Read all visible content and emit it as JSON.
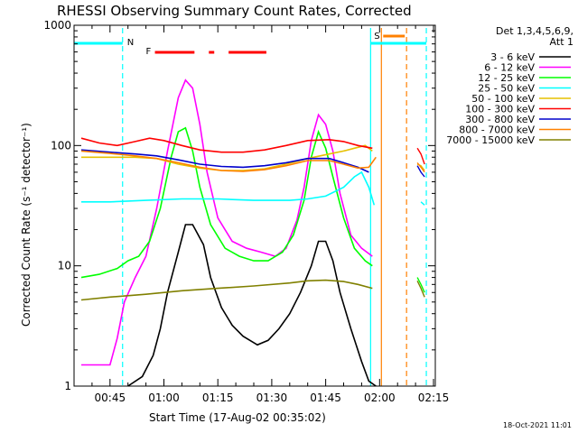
{
  "chart_data": {
    "type": "line",
    "title": "RHESSI Observing Summary Count Rates, Corrected",
    "xlabel": "Start Time (17-Aug-02 00:35:02)",
    "ylabel": "Corrected Count Rate (s⁻¹ detector⁻¹)",
    "y_scale": "log",
    "ylim": [
      1,
      1000
    ],
    "xlim_minutes": [
      35.0,
      135.5
    ],
    "x_tick_labels": [
      "00:45",
      "01:00",
      "01:15",
      "01:30",
      "01:45",
      "02:00",
      "02:15"
    ],
    "x_ticks_minutes": [
      45,
      60,
      75,
      90,
      105,
      120,
      135
    ],
    "y_tick_labels": [
      "1",
      "10",
      "100",
      "1000"
    ],
    "y_ticks": [
      1,
      10,
      100,
      1000
    ],
    "legend_title_lines": [
      "Det 1,3,4,5,6,9,",
      "Att 1"
    ],
    "legend_position": "right, outside plot",
    "series": [
      {
        "name": "3 - 6 keV",
        "color": "#000000",
        "t": [
          50,
          54,
          57,
          59,
          61,
          64,
          66,
          68,
          71,
          73,
          76,
          79,
          82,
          86,
          89,
          92,
          95,
          98,
          101,
          103,
          105,
          107,
          109,
          112,
          115,
          117,
          119
        ],
        "y": [
          1,
          1.2,
          1.8,
          3,
          6,
          13,
          22,
          22,
          15,
          8,
          4.5,
          3.2,
          2.6,
          2.2,
          2.4,
          3,
          4,
          6,
          10,
          16,
          16,
          11,
          6,
          3,
          1.6,
          1.1,
          1
        ]
      },
      {
        "name": "6 - 12 keV",
        "color": "#ff00ff",
        "t": [
          37,
          42,
          45,
          47,
          49,
          52,
          55,
          58,
          61,
          64,
          66,
          68,
          70,
          72,
          75,
          79,
          83,
          87,
          91,
          94,
          97,
          99,
          101,
          103,
          105,
          107,
          109,
          112,
          115,
          118
        ],
        "y": [
          1.5,
          1.5,
          1.5,
          2.5,
          5,
          8,
          12,
          30,
          90,
          250,
          350,
          300,
          150,
          60,
          25,
          16,
          14,
          13,
          12,
          14,
          24,
          45,
          110,
          180,
          150,
          90,
          40,
          18,
          14,
          12
        ]
      },
      {
        "name": "12 - 25 keV",
        "color": "#00ff00",
        "t": [
          37,
          42,
          47,
          50,
          53,
          56,
          59,
          62,
          64,
          66,
          68,
          70,
          73,
          77,
          81,
          85,
          89,
          93,
          96,
          99,
          101,
          103,
          105,
          107,
          110,
          113,
          116,
          118
        ],
        "y": [
          8,
          8.5,
          9.5,
          11,
          12,
          16,
          30,
          80,
          130,
          140,
          90,
          45,
          22,
          14,
          12,
          11,
          11,
          13,
          18,
          35,
          80,
          130,
          95,
          55,
          25,
          14,
          11,
          10
        ]
      },
      {
        "name": "25 - 50 keV",
        "color": "#00ffff",
        "t": [
          37,
          45,
          55,
          65,
          75,
          85,
          95,
          100,
          105,
          110,
          113,
          115,
          117,
          118.5
        ],
        "y": [
          34,
          34,
          35,
          36,
          36,
          35,
          35,
          36,
          38,
          45,
          55,
          60,
          45,
          32
        ]
      },
      {
        "name": "50 - 100 keV",
        "color": "#e6c000",
        "t": [
          37,
          45,
          52,
          58,
          64,
          70,
          76,
          82,
          88,
          94,
          100,
          106,
          110,
          113,
          116,
          118
        ],
        "y": [
          80,
          80,
          80,
          78,
          70,
          65,
          62,
          62,
          64,
          70,
          78,
          85,
          90,
          95,
          100,
          90
        ]
      },
      {
        "name": "100 - 300 keV",
        "color": "#ff0000",
        "t": [
          37,
          42,
          47,
          52,
          56,
          60,
          65,
          70,
          76,
          82,
          88,
          94,
          100,
          106,
          110,
          114,
          118
        ],
        "y": [
          115,
          105,
          100,
          108,
          115,
          110,
          100,
          92,
          88,
          88,
          92,
          100,
          110,
          112,
          108,
          100,
          95
        ]
      },
      {
        "name": "300 - 800 keV",
        "color": "#0000cc",
        "t": [
          37,
          45,
          52,
          58,
          64,
          70,
          76,
          82,
          88,
          94,
          100,
          106,
          110,
          114,
          117
        ],
        "y": [
          92,
          88,
          85,
          82,
          76,
          70,
          67,
          66,
          68,
          72,
          78,
          78,
          72,
          66,
          60
        ]
      },
      {
        "name": "800 - 7000 keV",
        "color": "#ff8000",
        "t": [
          37,
          45,
          52,
          58,
          64,
          70,
          76,
          82,
          88,
          94,
          100,
          106,
          110,
          114,
          117,
          119
        ],
        "y": [
          90,
          86,
          82,
          78,
          72,
          66,
          62,
          61,
          63,
          68,
          75,
          75,
          70,
          65,
          66,
          80
        ]
      },
      {
        "name": "7000 - 15000 keV",
        "color": "#808000",
        "t": [
          37,
          45,
          55,
          65,
          75,
          85,
          95,
          100,
          105,
          110,
          114,
          118
        ],
        "y": [
          5.2,
          5.5,
          5.8,
          6.2,
          6.5,
          6.8,
          7.2,
          7.5,
          7.6,
          7.4,
          7.0,
          6.5
        ]
      }
    ],
    "tail_segments": [
      {
        "color": "#ff0000",
        "t": [
          130.5,
          131.5,
          132.5
        ],
        "y": [
          95,
          85,
          70
        ]
      },
      {
        "color": "#e6c000",
        "t": [
          130.5,
          131.5,
          132.5
        ],
        "y": [
          70,
          68,
          62
        ]
      },
      {
        "color": "#0000cc",
        "t": [
          130.5,
          131.5,
          132.5
        ],
        "y": [
          68,
          60,
          55
        ]
      },
      {
        "color": "#ff8000",
        "t": [
          130.5,
          131.5,
          132.5
        ],
        "y": [
          72,
          66,
          60
        ]
      },
      {
        "color": "#00ffff",
        "t": [
          131.5,
          132.5
        ],
        "y": [
          34,
          32
        ]
      },
      {
        "color": "#00ff00",
        "t": [
          130.5,
          131.5,
          132.5
        ],
        "y": [
          8,
          7,
          6
        ]
      },
      {
        "color": "#808000",
        "t": [
          130.5,
          131.5,
          132.5
        ],
        "y": [
          7.5,
          6.5,
          5.5
        ]
      }
    ],
    "annotations": {
      "night_intervals": [
        [
          35.0,
          48.5
        ],
        [
          117.5,
          133.0
        ]
      ],
      "saa_interval": [
        121.0,
        127.0
      ],
      "flare_intervals": [
        [
          57.5,
          68.5
        ],
        [
          72.5,
          74.0
        ],
        [
          78.0,
          88.5
        ]
      ],
      "n_label": "N",
      "f_label": "F",
      "s_label": "S",
      "colors": {
        "night": "#00ffff",
        "flare": "#ff0000",
        "saa": "#ff8000"
      },
      "vlines": [
        {
          "t": 48.5,
          "color": "#00ffff",
          "style": "dashed"
        },
        {
          "t": 117.5,
          "color": "#00ffff",
          "style": "solid"
        },
        {
          "t": 133.0,
          "color": "#00ffff",
          "style": "dashed"
        },
        {
          "t": 120.5,
          "color": "#ff8000",
          "style": "solid"
        },
        {
          "t": 127.5,
          "color": "#ff8000",
          "style": "dashed"
        }
      ]
    }
  },
  "timestamp": "18-Oct-2021 11:01"
}
